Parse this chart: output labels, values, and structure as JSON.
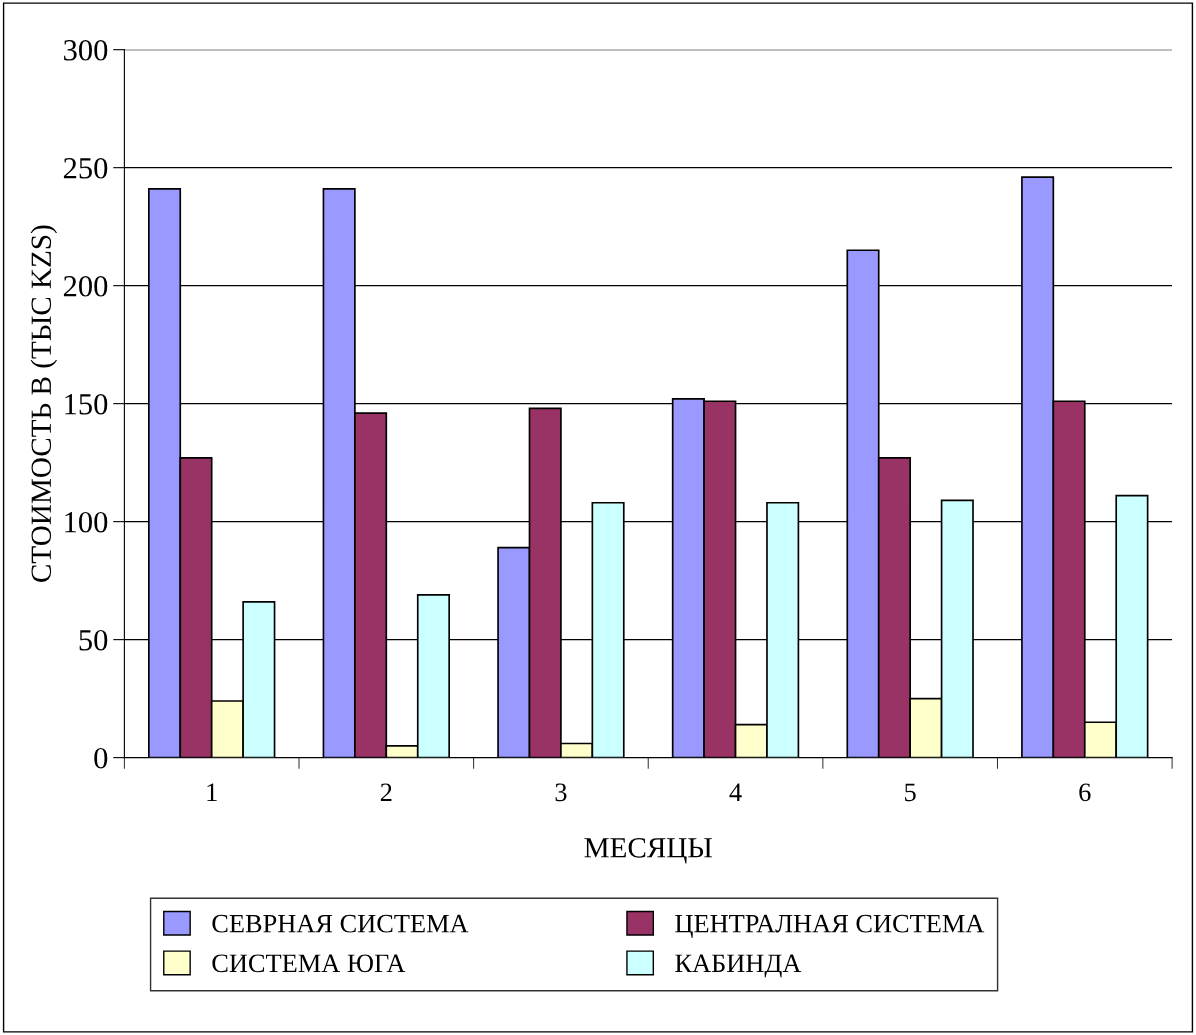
{
  "chart_data": {
    "type": "bar",
    "xlabel": "МЕСЯЦЫ",
    "ylabel": "СТОИМОСТЬ В (ТЫС KZS)",
    "categories": [
      "1",
      "2",
      "3",
      "4",
      "5",
      "6"
    ],
    "series": [
      {
        "name": "СЕВРНАЯ СИСТЕМА",
        "color": "#9999ff",
        "values": [
          241,
          241,
          89,
          152,
          215,
          246
        ]
      },
      {
        "name": "ЦЕНТРАЛНАЯ СИСТЕМА",
        "color": "#993366",
        "values": [
          127,
          146,
          148,
          151,
          127,
          151
        ]
      },
      {
        "name": "СИСТЕМА ЮГА",
        "color": "#ffffcc",
        "values": [
          24,
          5,
          6,
          14,
          25,
          15
        ]
      },
      {
        "name": "КАБИНДА",
        "color": "#ccffff",
        "values": [
          66,
          69,
          108,
          108,
          109,
          111
        ]
      }
    ],
    "ylim": [
      0,
      300
    ],
    "yticks": [
      0,
      50,
      100,
      150,
      200,
      250,
      300
    ],
    "grid": "y",
    "legend": "bottom"
  }
}
